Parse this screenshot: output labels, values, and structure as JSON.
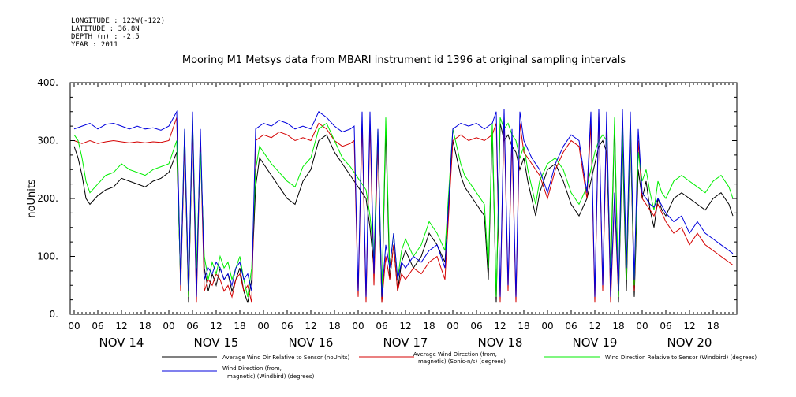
{
  "header": {
    "meta_lines": [
      "LONGITUDE : 122W(-122)",
      "LATITUDE : 36.8N",
      "DEPTH (m) : -2.5",
      "YEAR : 2011"
    ]
  },
  "chart_data": {
    "type": "line",
    "title": "Mooring M1 Metsys data from MBARI instrument id 1396 at original sampling intervals",
    "ylabel": "noUnits",
    "xlabel": "",
    "ylim": [
      0,
      400
    ],
    "yticks": [
      "0.",
      "100.",
      "200.",
      "300.",
      "400."
    ],
    "ytick_values": [
      0,
      100,
      200,
      300,
      400
    ],
    "xlim_hours": [
      -1,
      168
    ],
    "hour_ticks": [
      "00",
      "06",
      "12",
      "18",
      "00",
      "06",
      "12",
      "18",
      "00",
      "06",
      "12",
      "18",
      "00",
      "06",
      "12",
      "18",
      "00",
      "06",
      "12",
      "18",
      "00",
      "06",
      "12",
      "18",
      "00",
      "06",
      "12",
      "18"
    ],
    "day_labels": [
      "NOV 14",
      "NOV 15",
      "NOV 16",
      "NOV 17",
      "NOV 18",
      "NOV 19",
      "NOV 20"
    ],
    "grid": false,
    "series": [
      {
        "name": "Average Wind Dir Relative to Sensor (noUnits)",
        "color": "#000000",
        "legend_lines": [
          "Average Wind Dir Relative to Sensor (noUnits)"
        ],
        "x": [
          0,
          1,
          2,
          3,
          4,
          6,
          8,
          10,
          12,
          14,
          16,
          18,
          20,
          22,
          24,
          26,
          27,
          28,
          29,
          30,
          31,
          32,
          33,
          34,
          35,
          36,
          37,
          38,
          39,
          40,
          41,
          42,
          43,
          44,
          45,
          46,
          47,
          48,
          50,
          52,
          54,
          56,
          58,
          60,
          62,
          64,
          66,
          68,
          70,
          71,
          72,
          73,
          74,
          75,
          76,
          77,
          78,
          79,
          80,
          81,
          82,
          83,
          84,
          86,
          88,
          90,
          92,
          94,
          96,
          97,
          98,
          99,
          100,
          101,
          102,
          103,
          104,
          105,
          106,
          107,
          108,
          109,
          110,
          111,
          112,
          113,
          114,
          115,
          116,
          117,
          118,
          120,
          122,
          124,
          126,
          128,
          130,
          131,
          132,
          133,
          134,
          135,
          136,
          137,
          138,
          139,
          140,
          141,
          142,
          143,
          144,
          145,
          146,
          147,
          148,
          149,
          150,
          152,
          154,
          156,
          158,
          160,
          162,
          164,
          166,
          167
        ],
        "values": [
          290,
          270,
          240,
          200,
          190,
          205,
          215,
          220,
          235,
          230,
          225,
          220,
          230,
          235,
          245,
          280,
          60,
          300,
          20,
          330,
          50,
          300,
          80,
          40,
          70,
          50,
          80,
          60,
          70,
          40,
          60,
          80,
          40,
          20,
          60,
          220,
          270,
          260,
          240,
          220,
          200,
          190,
          230,
          250,
          300,
          310,
          280,
          260,
          240,
          230,
          220,
          210,
          200,
          150,
          80,
          300,
          20,
          320,
          60,
          120,
          40,
          90,
          110,
          80,
          100,
          140,
          120,
          90,
          300,
          270,
          240,
          220,
          210,
          200,
          190,
          180,
          170,
          60,
          320,
          20,
          330,
          300,
          310,
          290,
          280,
          250,
          270,
          230,
          200,
          170,
          210,
          250,
          260,
          230,
          190,
          170,
          200,
          230,
          260,
          290,
          300,
          280,
          60,
          330,
          20,
          300,
          40,
          320,
          30,
          250,
          200,
          230,
          180,
          150,
          200,
          180,
          170,
          200,
          210,
          200,
          190,
          180,
          200,
          210,
          190,
          170
        ]
      },
      {
        "name": "Average Wind Direction (from, magnetic) (Sonic-n/s) (degrees)",
        "color": "#d40000",
        "legend_lines": [
          "Average Wind Direction (from,",
          "magnetic) (Sonic-n/s) (degrees)"
        ],
        "x": [
          0,
          2,
          4,
          6,
          8,
          10,
          12,
          14,
          16,
          18,
          20,
          22,
          24,
          26,
          27,
          28,
          29,
          30,
          31,
          32,
          33,
          34,
          35,
          36,
          37,
          38,
          39,
          40,
          41,
          42,
          43,
          44,
          45,
          46,
          48,
          50,
          52,
          54,
          56,
          58,
          60,
          62,
          64,
          66,
          68,
          70,
          71,
          72,
          73,
          74,
          75,
          76,
          77,
          78,
          79,
          80,
          81,
          82,
          83,
          84,
          86,
          88,
          90,
          92,
          94,
          96,
          98,
          100,
          102,
          104,
          106,
          107,
          108,
          109,
          110,
          111,
          112,
          113,
          114,
          116,
          118,
          120,
          122,
          124,
          126,
          128,
          130,
          131,
          132,
          133,
          134,
          135,
          136,
          137,
          138,
          139,
          140,
          141,
          142,
          143,
          144,
          145,
          146,
          147,
          148,
          150,
          152,
          154,
          156,
          158,
          160,
          162,
          164,
          166,
          167
        ],
        "values": [
          300,
          295,
          300,
          295,
          298,
          300,
          298,
          296,
          298,
          296,
          298,
          297,
          300,
          340,
          40,
          300,
          30,
          330,
          20,
          300,
          40,
          60,
          50,
          70,
          60,
          40,
          50,
          30,
          60,
          70,
          40,
          50,
          20,
          300,
          310,
          305,
          315,
          310,
          300,
          305,
          300,
          330,
          320,
          300,
          290,
          295,
          300,
          30,
          330,
          20,
          330,
          50,
          300,
          20,
          100,
          60,
          120,
          40,
          70,
          60,
          80,
          70,
          90,
          100,
          60,
          300,
          310,
          300,
          305,
          300,
          310,
          330,
          20,
          340,
          40,
          300,
          20,
          330,
          280,
          260,
          240,
          200,
          250,
          280,
          300,
          290,
          200,
          330,
          20,
          350,
          40,
          330,
          20,
          200,
          30,
          340,
          60,
          330,
          40,
          300,
          200,
          190,
          180,
          170,
          190,
          160,
          140,
          150,
          120,
          140,
          120,
          110,
          100,
          90,
          85
        ]
      },
      {
        "name": "Wind Direction Relative to Sensor (Windbird) (degrees)",
        "color": "#00ee00",
        "legend_lines": [
          "Wind Direction Relative to Sensor (Windbird) (degrees)"
        ],
        "x": [
          0,
          1,
          2,
          3,
          4,
          6,
          8,
          10,
          12,
          14,
          16,
          18,
          20,
          22,
          24,
          26,
          27,
          28,
          29,
          30,
          31,
          32,
          33,
          34,
          35,
          36,
          37,
          38,
          39,
          40,
          41,
          42,
          43,
          44,
          45,
          46,
          47,
          48,
          50,
          52,
          54,
          56,
          58,
          60,
          62,
          64,
          66,
          68,
          70,
          71,
          72,
          73,
          74,
          75,
          76,
          77,
          78,
          79,
          80,
          81,
          82,
          83,
          84,
          86,
          88,
          90,
          92,
          94,
          96,
          97,
          98,
          99,
          100,
          101,
          102,
          103,
          104,
          105,
          106,
          107,
          108,
          109,
          110,
          111,
          112,
          113,
          114,
          115,
          116,
          117,
          118,
          120,
          122,
          124,
          126,
          128,
          130,
          131,
          132,
          133,
          134,
          135,
          136,
          137,
          138,
          139,
          140,
          141,
          142,
          143,
          144,
          145,
          146,
          147,
          148,
          149,
          150,
          152,
          154,
          156,
          158,
          160,
          162,
          164,
          166,
          167
        ],
        "values": [
          310,
          300,
          270,
          230,
          210,
          225,
          240,
          245,
          260,
          250,
          245,
          240,
          250,
          255,
          260,
          300,
          50,
          320,
          30,
          340,
          80,
          280,
          100,
          60,
          90,
          70,
          100,
          80,
          90,
          60,
          80,
          100,
          60,
          30,
          80,
          250,
          290,
          280,
          260,
          245,
          230,
          220,
          255,
          270,
          320,
          330,
          300,
          270,
          255,
          245,
          235,
          225,
          215,
          170,
          100,
          320,
          30,
          340,
          80,
          140,
          60,
          110,
          130,
          100,
          120,
          160,
          140,
          110,
          320,
          290,
          260,
          240,
          230,
          220,
          210,
          200,
          190,
          80,
          330,
          30,
          340,
          320,
          330,
          310,
          300,
          270,
          290,
          250,
          220,
          190,
          230,
          260,
          270,
          250,
          210,
          190,
          220,
          250,
          280,
          300,
          310,
          300,
          80,
          340,
          30,
          320,
          60,
          330,
          50,
          280,
          230,
          250,
          210,
          180,
          230,
          210,
          200,
          230,
          240,
          230,
          220,
          210,
          230,
          240,
          220,
          200
        ]
      },
      {
        "name": "Wind Direction (from, magnetic) (Windbird) (degrees)",
        "color": "#0000dd",
        "legend_lines": [
          "Wind Direction (from,",
          "magnetic) (Windbird) (degrees)"
        ],
        "x": [
          0,
          2,
          4,
          6,
          8,
          10,
          12,
          14,
          16,
          18,
          20,
          22,
          24,
          26,
          27,
          28,
          29,
          30,
          31,
          32,
          33,
          34,
          35,
          36,
          37,
          38,
          39,
          40,
          41,
          42,
          43,
          44,
          45,
          46,
          48,
          50,
          52,
          54,
          56,
          58,
          60,
          62,
          64,
          66,
          68,
          70,
          71,
          72,
          73,
          74,
          75,
          76,
          77,
          78,
          79,
          80,
          81,
          82,
          83,
          84,
          86,
          88,
          90,
          92,
          94,
          96,
          98,
          100,
          102,
          104,
          106,
          107,
          108,
          109,
          110,
          111,
          112,
          113,
          114,
          116,
          118,
          120,
          122,
          124,
          126,
          128,
          130,
          131,
          132,
          133,
          134,
          135,
          136,
          137,
          138,
          139,
          140,
          141,
          142,
          143,
          144,
          145,
          146,
          147,
          148,
          150,
          152,
          154,
          156,
          158,
          160,
          162,
          164,
          166,
          167
        ],
        "values": [
          320,
          325,
          330,
          320,
          328,
          330,
          325,
          320,
          325,
          320,
          322,
          318,
          325,
          350,
          50,
          320,
          40,
          350,
          30,
          320,
          60,
          80,
          70,
          90,
          80,
          60,
          70,
          50,
          80,
          90,
          60,
          70,
          40,
          320,
          330,
          325,
          335,
          330,
          320,
          325,
          320,
          350,
          340,
          325,
          315,
          320,
          325,
          40,
          350,
          30,
          350,
          70,
          320,
          30,
          120,
          80,
          140,
          60,
          90,
          80,
          100,
          90,
          110,
          120,
          80,
          320,
          330,
          325,
          330,
          320,
          330,
          350,
          30,
          355,
          50,
          320,
          30,
          350,
          300,
          270,
          250,
          210,
          260,
          290,
          310,
          300,
          210,
          350,
          30,
          355,
          50,
          350,
          30,
          210,
          40,
          355,
          80,
          350,
          60,
          320,
          210,
          200,
          190,
          185,
          200,
          175,
          160,
          170,
          140,
          160,
          140,
          130,
          120,
          110,
          105
        ]
      }
    ]
  }
}
